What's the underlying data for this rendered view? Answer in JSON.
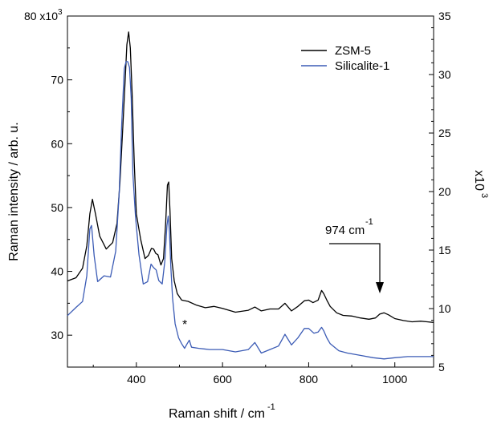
{
  "chart_data": {
    "type": "line",
    "xlabel": "Raman shift / cm",
    "xlabel_superscript": "-1",
    "ylabel_left": "Raman intensity / arb. u.",
    "ylabel_right": "x10",
    "ylabel_right_superscript": "3",
    "left_axis": {
      "range": [
        25000,
        80000
      ],
      "ticks": [
        {
          "value": 30000,
          "label": "30"
        },
        {
          "value": 40000,
          "label": "40"
        },
        {
          "value": 50000,
          "label": "50"
        },
        {
          "value": 60000,
          "label": "60"
        },
        {
          "value": 70000,
          "label": "70"
        },
        {
          "value": 80000,
          "label": "80 x10"
        }
      ],
      "top_tick_superscript": "3"
    },
    "right_axis": {
      "range": [
        5000,
        35000
      ],
      "ticks": [
        {
          "value": 5000,
          "label": "5"
        },
        {
          "value": 10000,
          "label": "10"
        },
        {
          "value": 15000,
          "label": "15"
        },
        {
          "value": 20000,
          "label": "20"
        },
        {
          "value": 25000,
          "label": "25"
        },
        {
          "value": 30000,
          "label": "30"
        },
        {
          "value": 35000,
          "label": "35"
        }
      ]
    },
    "x_axis": {
      "range": [
        240,
        1090
      ],
      "ticks": [
        {
          "value": 400,
          "label": "400"
        },
        {
          "value": 600,
          "label": "600"
        },
        {
          "value": 800,
          "label": "800"
        },
        {
          "value": 1000,
          "label": "1000"
        }
      ]
    },
    "series": [
      {
        "name": "ZSM-5",
        "axis": "left",
        "color": "#000000",
        "x": [
          240,
          260,
          275,
          285,
          292,
          298,
          305,
          315,
          330,
          345,
          355,
          362,
          368,
          374,
          378,
          382,
          386,
          390,
          395,
          400,
          410,
          420,
          428,
          435,
          440,
          445,
          450,
          457,
          463,
          468,
          472,
          475,
          478,
          482,
          488,
          495,
          505,
          520,
          540,
          560,
          580,
          600,
          630,
          660,
          675,
          690,
          710,
          730,
          745,
          760,
          775,
          790,
          800,
          810,
          822,
          830,
          835,
          842,
          850,
          865,
          880,
          900,
          920,
          940,
          955,
          965,
          975,
          985,
          1000,
          1020,
          1040,
          1060,
          1075,
          1090
        ],
        "y": [
          38500,
          39000,
          40500,
          44000,
          49000,
          51300,
          49000,
          45500,
          43500,
          44500,
          47500,
          54000,
          62000,
          70000,
          75500,
          77500,
          75000,
          68000,
          57000,
          49000,
          45000,
          42000,
          42500,
          43600,
          43500,
          42800,
          42600,
          41000,
          42000,
          47500,
          53500,
          54000,
          49500,
          42000,
          38500,
          36500,
          35500,
          35300,
          34700,
          34300,
          34500,
          34200,
          33600,
          33900,
          34400,
          33800,
          34100,
          34100,
          35000,
          33800,
          34500,
          35400,
          35500,
          35100,
          35500,
          37000,
          36500,
          35500,
          34500,
          33500,
          33100,
          33000,
          32700,
          32500,
          32700,
          33300,
          33500,
          33200,
          32600,
          32300,
          32100,
          32200,
          32100,
          32000
        ]
      },
      {
        "name": "Silicalite-1",
        "axis": "right",
        "color": "#3b5bb5",
        "x": [
          240,
          260,
          275,
          285,
          292,
          296,
          302,
          310,
          325,
          340,
          352,
          360,
          366,
          372,
          376,
          380,
          384,
          388,
          392,
          398,
          406,
          416,
          426,
          434,
          440,
          446,
          452,
          460,
          466,
          471,
          474,
          477,
          480,
          484,
          490,
          498,
          505,
          512,
          518,
          523,
          528,
          545,
          570,
          600,
          630,
          660,
          675,
          690,
          710,
          730,
          745,
          760,
          775,
          790,
          800,
          812,
          822,
          830,
          835,
          842,
          850,
          870,
          890,
          920,
          950,
          975,
          1000,
          1030,
          1060,
          1090
        ],
        "y": [
          9400,
          10100,
          10600,
          12800,
          16800,
          17100,
          14500,
          12300,
          12800,
          12700,
          14900,
          19800,
          25800,
          30500,
          31100,
          31100,
          30600,
          28000,
          21500,
          17800,
          14600,
          12100,
          12300,
          13800,
          13500,
          13300,
          12400,
          12100,
          14000,
          17100,
          17900,
          16500,
          13500,
          10900,
          8700,
          7500,
          7000,
          6600,
          7000,
          7300,
          6700,
          6600,
          6500,
          6500,
          6300,
          6500,
          7100,
          6200,
          6500,
          6800,
          7800,
          6900,
          7500,
          8300,
          8300,
          7900,
          8000,
          8400,
          8100,
          7500,
          7000,
          6400,
          6200,
          6000,
          5800,
          5700,
          5800,
          5900,
          5900,
          5900
        ]
      }
    ],
    "annotations": [
      {
        "id": "peak-974",
        "text": "974 cm",
        "superscript": "-1",
        "x": 974
      },
      {
        "id": "asterisk",
        "text": "*",
        "x": 520
      }
    ],
    "legend": {
      "placement": "top-right"
    },
    "grid": false
  }
}
